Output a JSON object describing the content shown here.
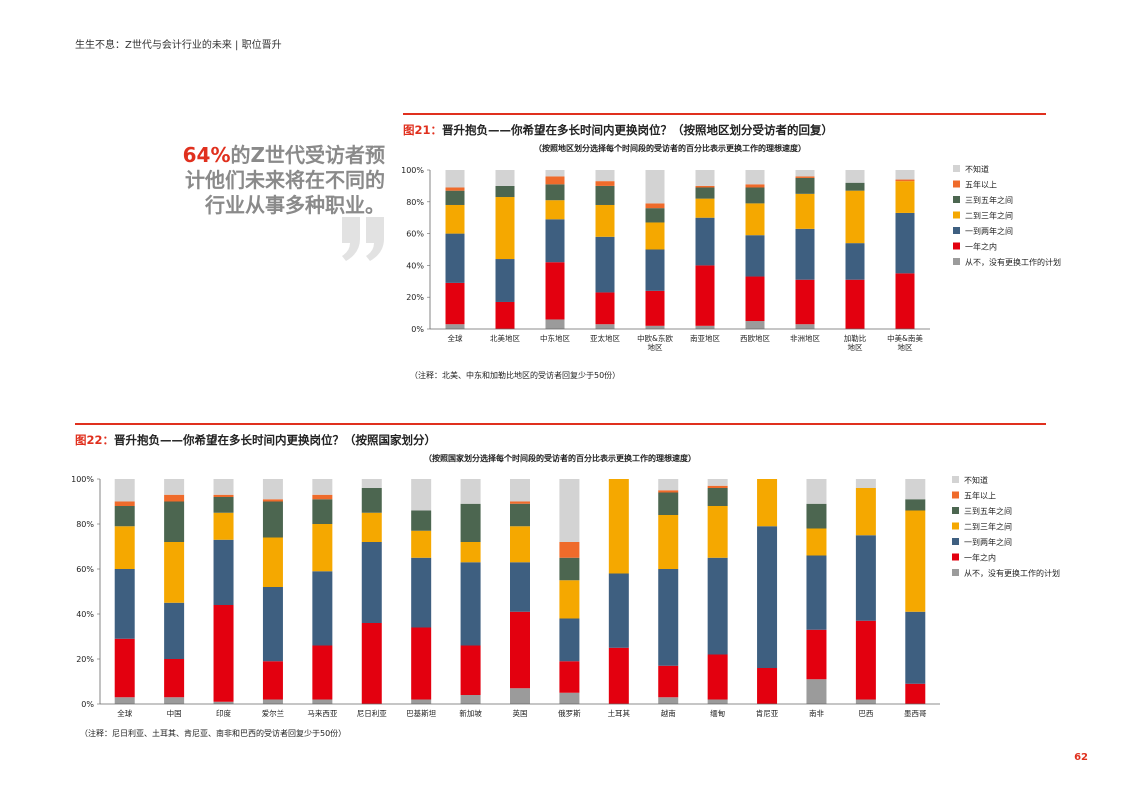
{
  "header": {
    "text": "生生不息：Z世代与会计行业的未来 | 职位晋升"
  },
  "quote": {
    "highlight": "64%",
    "line1_rest": "的Z世代受访者预",
    "line2": "计他们未来将在不同的",
    "line3": "行业从事多种职业。"
  },
  "page_number": "62",
  "colors": {
    "accent": "#e0301e",
    "never": "#9b9b9b",
    "within_1y": "#e3000f",
    "y1_2": "#3e5f80",
    "y2_3": "#f5a800",
    "y3_5": "#4c6650",
    "over_5y": "#ef6b2b",
    "unknown": "#d3d3d3"
  },
  "chart_data": [
    {
      "type": "bar",
      "stacked": true,
      "figure_label": "图21：",
      "title": "晋升抱负——你希望在多长时间内更换岗位？（按照地区划分受访者的回复）",
      "subtitle": "（按照地区划分选择每个时间段的受访者的百分比表示更换工作的理想速度）",
      "note": "（注释：北美、中东和加勒比地区的受访者回复少于50份）",
      "categories": [
        "全球",
        "北美地区",
        "中东地区",
        "亚太地区",
        "中欧&东欧地区",
        "南亚地区",
        "西欧地区",
        "非洲地区",
        "加勒比地区",
        "中美&南美地区"
      ],
      "yticks": [
        "0%",
        "20%",
        "40%",
        "60%",
        "80%",
        "100%"
      ],
      "ylim": [
        0,
        100
      ],
      "legend_position": "right",
      "series": [
        {
          "name": "从不，没有更换工作的计划",
          "values": [
            3,
            0,
            6,
            3,
            2,
            2,
            5,
            3,
            0,
            0
          ]
        },
        {
          "name": "一年之内",
          "values": [
            26,
            17,
            36,
            20,
            22,
            38,
            28,
            28,
            31,
            35
          ]
        },
        {
          "name": "一到两年之间",
          "values": [
            31,
            27,
            27,
            35,
            26,
            30,
            26,
            32,
            23,
            38
          ]
        },
        {
          "name": "二到三年之间",
          "values": [
            18,
            39,
            12,
            20,
            17,
            12,
            20,
            22,
            33,
            20
          ]
        },
        {
          "name": "三到五年之间",
          "values": [
            9,
            7,
            10,
            12,
            9,
            7,
            10,
            10,
            5,
            0
          ]
        },
        {
          "name": "五年以上",
          "values": [
            2,
            0,
            5,
            3,
            3,
            1,
            2,
            1,
            0,
            1
          ]
        },
        {
          "name": "不知道",
          "values": [
            11,
            10,
            4,
            7,
            21,
            10,
            9,
            4,
            8,
            6
          ]
        }
      ]
    },
    {
      "type": "bar",
      "stacked": true,
      "figure_label": "图22：",
      "title": "晋升抱负——你希望在多长时间内更换岗位？（按照国家划分）",
      "subtitle": "（按照国家划分选择每个时间段的受访者的百分比表示更换工作的理想速度）",
      "note": "（注释：尼日利亚、土耳其、肯尼亚、南非和巴西的受访者回复少于50份）",
      "categories": [
        "全球",
        "中国",
        "印度",
        "爱尔兰",
        "马来西亚",
        "尼日利亚",
        "巴基斯坦",
        "新加坡",
        "英国",
        "俄罗斯",
        "土耳其",
        "越南",
        "缅甸",
        "肯尼亚",
        "南非",
        "巴西",
        "墨西哥"
      ],
      "yticks": [
        "0%",
        "20%",
        "40%",
        "60%",
        "80%",
        "100%"
      ],
      "ylim": [
        0,
        100
      ],
      "legend_position": "right",
      "series": [
        {
          "name": "从不，没有更换工作的计划",
          "values": [
            3,
            3,
            1,
            2,
            2,
            0,
            2,
            4,
            7,
            5,
            0,
            3,
            2,
            0,
            11,
            2,
            0
          ]
        },
        {
          "name": "一年之内",
          "values": [
            26,
            17,
            43,
            17,
            24,
            36,
            32,
            22,
            34,
            14,
            25,
            14,
            20,
            16,
            22,
            35,
            9
          ]
        },
        {
          "name": "一到两年之间",
          "values": [
            31,
            25,
            29,
            33,
            33,
            36,
            31,
            37,
            22,
            19,
            33,
            43,
            43,
            63,
            33,
            38,
            32
          ]
        },
        {
          "name": "二到三年之间",
          "values": [
            19,
            27,
            12,
            22,
            21,
            13,
            12,
            9,
            16,
            17,
            42,
            24,
            23,
            21,
            12,
            21,
            45
          ]
        },
        {
          "name": "三到五年之间",
          "values": [
            9,
            18,
            7,
            16,
            11,
            11,
            9,
            17,
            10,
            10,
            0,
            10,
            8,
            0,
            11,
            0,
            5
          ]
        },
        {
          "name": "五年以上",
          "values": [
            2,
            3,
            1,
            1,
            2,
            0,
            0,
            0,
            1,
            7,
            0,
            1,
            1,
            0,
            0,
            0,
            0
          ]
        },
        {
          "name": "不知道",
          "values": [
            10,
            7,
            7,
            9,
            7,
            4,
            14,
            11,
            10,
            28,
            0,
            5,
            3,
            0,
            11,
            4,
            9
          ]
        }
      ]
    }
  ]
}
